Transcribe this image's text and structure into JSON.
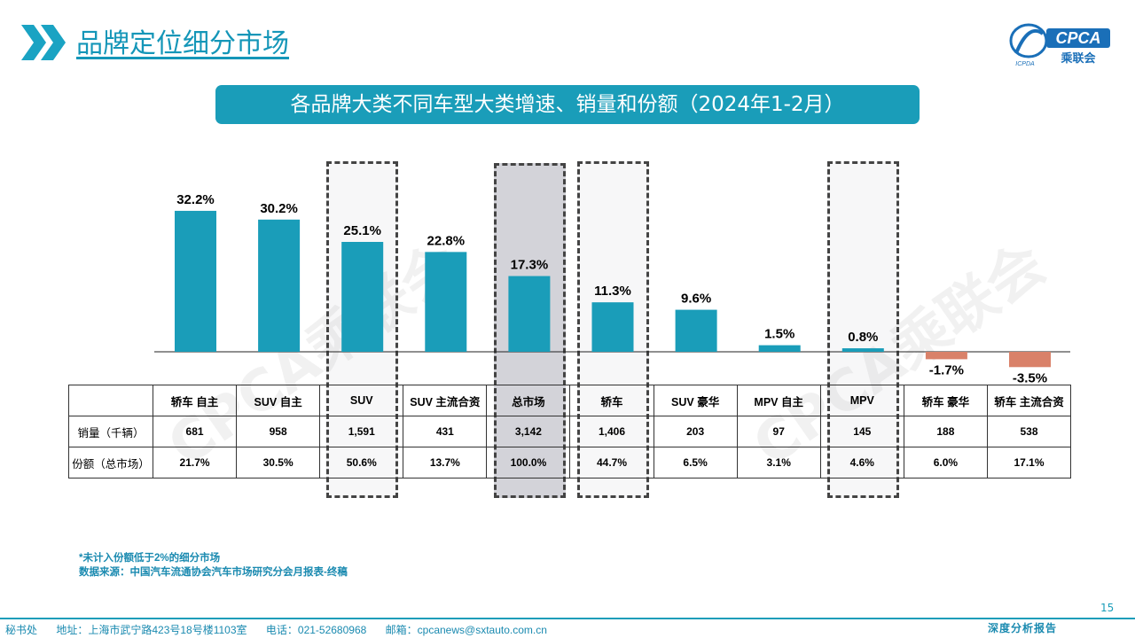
{
  "header": {
    "title": "品牌定位细分市场",
    "logo_text": "CPCA",
    "logo_sub": "乘联会",
    "logo_small": "ICPDA"
  },
  "banner": "各品牌大类不同车型大类增速、销量和份额（2024年1-2月）",
  "watermark": "CPCA乘联会",
  "colors": {
    "positive": "#1a9db9",
    "negative": "#d98169",
    "accent": "#1496b8",
    "footer": "#1a8ab0"
  },
  "chart_data": {
    "type": "bar",
    "categories": [
      "轿车 自主",
      "SUV 自主",
      "SUV",
      "SUV 主流合资",
      "总市场",
      "轿车",
      "SUV 豪华",
      "MPV 自主",
      "MPV",
      "轿车 豪华",
      "轿车 主流合资"
    ],
    "values": [
      32.2,
      30.2,
      25.1,
      22.8,
      17.3,
      11.3,
      9.6,
      1.5,
      0.8,
      -1.7,
      -3.5
    ],
    "labels": [
      "32.2%",
      "30.2%",
      "25.1%",
      "22.8%",
      "17.3%",
      "11.3%",
      "9.6%",
      "1.5%",
      "0.8%",
      "-1.7%",
      "-3.5%"
    ],
    "highlighted": [
      "SUV",
      "总市场",
      "轿车",
      "MPV"
    ],
    "title": "",
    "xlabel": "",
    "ylabel": "",
    "grid": false
  },
  "table": {
    "rows": [
      {
        "label": "销量（千辆）",
        "cells": [
          "681",
          "958",
          "1,591",
          "431",
          "3,142",
          "1,406",
          "203",
          "97",
          "145",
          "188",
          "538"
        ]
      },
      {
        "label": "份额（总市场）",
        "cells": [
          "21.7%",
          "30.5%",
          "50.6%",
          "13.7%",
          "100.0%",
          "44.7%",
          "6.5%",
          "3.1%",
          "4.6%",
          "6.0%",
          "17.1%"
        ]
      }
    ]
  },
  "notes": {
    "line1": "*未计入份额低于2%的细分市场",
    "line2": "数据来源：中国汽车流通协会汽车市场研究分会月报表-终稿"
  },
  "page_number": "15",
  "footer": {
    "office": "秘书处",
    "address": "地址：上海市武宁路423号18号楼1103室",
    "phone": "电话：021-52680968",
    "email": "邮箱：cpcanews@sxtauto.com.cn",
    "report": "深度分析报告"
  }
}
